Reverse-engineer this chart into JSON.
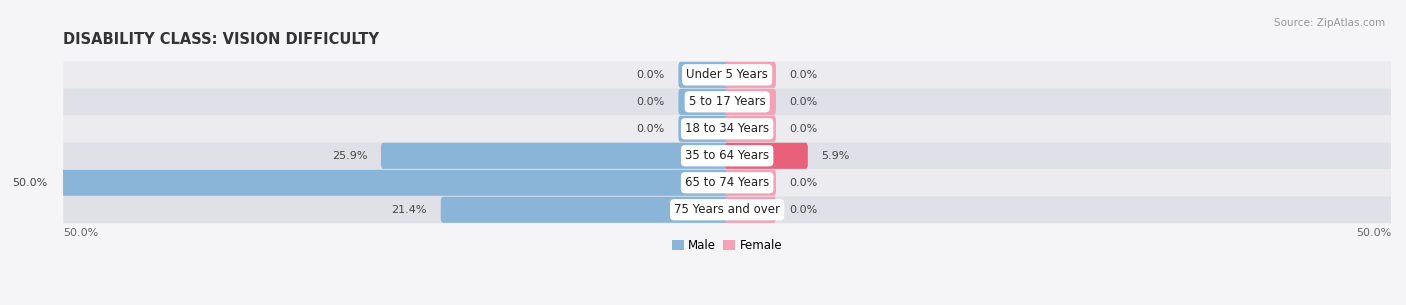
{
  "title": "DISABILITY CLASS: VISION DIFFICULTY",
  "source": "Source: ZipAtlas.com",
  "categories": [
    "Under 5 Years",
    "5 to 17 Years",
    "18 to 34 Years",
    "35 to 64 Years",
    "65 to 74 Years",
    "75 Years and over"
  ],
  "male_values": [
    0.0,
    0.0,
    0.0,
    25.9,
    50.0,
    21.4
  ],
  "female_values": [
    0.0,
    0.0,
    0.0,
    5.9,
    0.0,
    0.0
  ],
  "male_color": "#8ab4d8",
  "female_color": "#f4a0b5",
  "female_color_vivid": "#e8607a",
  "row_bg_colors": [
    "#ebebf0",
    "#e0e0e8"
  ],
  "x_min": -50.0,
  "x_max": 50.0,
  "axis_label_left": "50.0%",
  "axis_label_right": "50.0%",
  "title_fontsize": 10.5,
  "label_fontsize": 8.5,
  "value_fontsize": 8.0,
  "background_color": "#f5f5f8",
  "stub_size": 3.5
}
